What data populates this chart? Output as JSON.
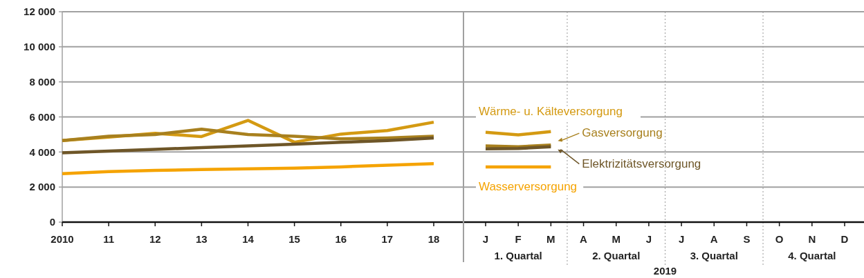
{
  "chart_data": [
    {
      "type": "line",
      "categories": [
        "2010",
        "11",
        "12",
        "13",
        "14",
        "15",
        "16",
        "17",
        "18"
      ],
      "series": [
        {
          "color": "#d49a12",
          "values": [
            4650,
            4850,
            5070,
            4880,
            5800,
            4560,
            5020,
            5220,
            5700
          ]
        },
        {
          "color": "#a8801e",
          "values": [
            4650,
            4900,
            5000,
            5300,
            5000,
            4900,
            4750,
            4800,
            4900
          ]
        },
        {
          "color": "#6e5628",
          "values": [
            3950,
            4050,
            4150,
            4250,
            4350,
            4450,
            4550,
            4650,
            4800
          ]
        },
        {
          "color": "#f5a300",
          "values": [
            2760,
            2880,
            2950,
            3000,
            3040,
            3080,
            3150,
            3250,
            3330
          ]
        }
      ],
      "ylim": [
        0,
        12000
      ],
      "yticks": [
        {
          "value": 0,
          "label": "0"
        },
        {
          "value": 2000,
          "label": "2 000"
        },
        {
          "value": 4000,
          "label": "4 000"
        },
        {
          "value": 6000,
          "label": "6 000"
        },
        {
          "value": 8000,
          "label": "8 000"
        },
        {
          "value": 10000,
          "label": "10 000"
        },
        {
          "value": 12000,
          "label": "12 000"
        }
      ],
      "grid": "y"
    },
    {
      "type": "line",
      "categories": [
        "J",
        "F",
        "M",
        "A",
        "M",
        "J",
        "J",
        "A",
        "S",
        "O",
        "N",
        "D"
      ],
      "series": [
        {
          "name": "Wärme- u. Kälteversorgung",
          "color": "#d49a12",
          "values": [
            5120,
            4980,
            5160,
            null,
            null,
            null,
            null,
            null,
            null,
            null,
            null,
            null
          ]
        },
        {
          "name": "Gasversorgung",
          "color": "#a8801e",
          "values": [
            4350,
            4300,
            4400,
            null,
            null,
            null,
            null,
            null,
            null,
            null,
            null,
            null
          ]
        },
        {
          "name": "Elektrizitätsversorgung",
          "color": "#6e5628",
          "values": [
            4180,
            4200,
            4300,
            null,
            null,
            null,
            null,
            null,
            null,
            null,
            null,
            null
          ]
        },
        {
          "name": "Wasserversorgung",
          "color": "#f5a300",
          "values": [
            3150,
            3150,
            3150,
            null,
            null,
            null,
            null,
            null,
            null,
            null,
            null,
            null
          ]
        }
      ],
      "ylim": [
        0,
        12000
      ],
      "yticks": [
        0,
        2000,
        4000,
        6000,
        8000,
        10000,
        12000
      ],
      "grid": "y",
      "tick_labels": "x",
      "legend": "bottom left",
      "annotations": [
        "1. Quartal",
        "2. Quartal",
        "3. Quartal",
        "4. Quartal",
        "2019"
      ]
    }
  ]
}
